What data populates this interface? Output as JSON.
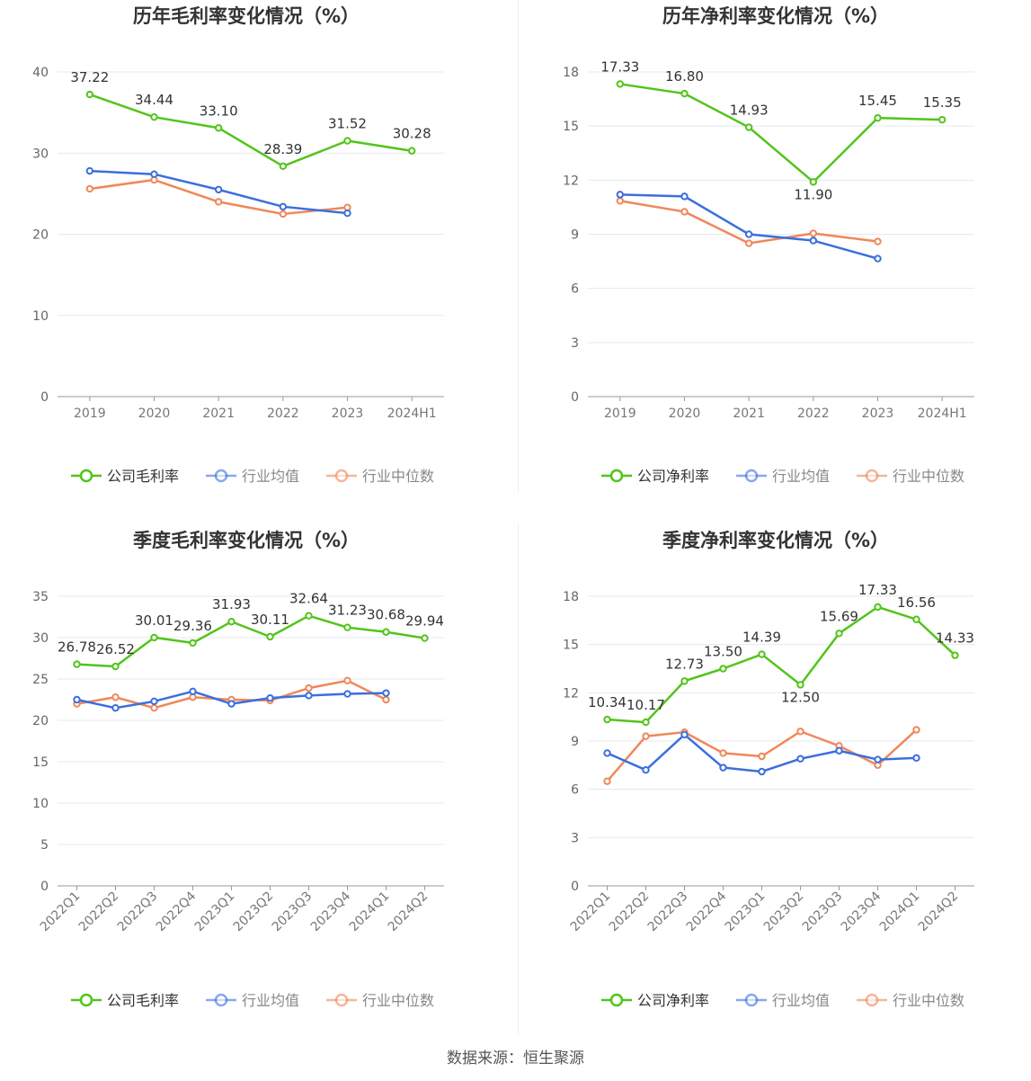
{
  "source": "数据来源：恒生聚源",
  "colors": {
    "company": "#52c41a",
    "avg": "#3b6fde",
    "median": "#f0875a"
  },
  "chart_data": [
    {
      "type": "line",
      "title": "历年毛利率变化情况（%）",
      "categories": [
        "2019",
        "2020",
        "2021",
        "2022",
        "2023",
        "2024H1"
      ],
      "ylim": [
        0,
        40
      ],
      "yticks": [
        0,
        10,
        20,
        30,
        40
      ],
      "grid": true,
      "legend_position": "bottom",
      "series": [
        {
          "name": "公司毛利率",
          "role": "company",
          "values": [
            37.22,
            34.44,
            33.1,
            28.39,
            31.52,
            30.28
          ],
          "labels": [
            "37.22",
            "34.44",
            "33.10",
            "28.39",
            "31.52",
            "30.28"
          ]
        },
        {
          "name": "行业均值",
          "role": "avg",
          "values": [
            27.8,
            27.4,
            25.5,
            23.4,
            22.6,
            null
          ]
        },
        {
          "name": "行业中位数",
          "role": "median",
          "values": [
            25.6,
            26.7,
            24.0,
            22.5,
            23.3,
            null
          ]
        }
      ]
    },
    {
      "type": "line",
      "title": "历年净利率变化情况（%）",
      "categories": [
        "2019",
        "2020",
        "2021",
        "2022",
        "2023",
        "2024H1"
      ],
      "ylim": [
        0,
        18
      ],
      "yticks": [
        0,
        3,
        6,
        9,
        12,
        15,
        18
      ],
      "grid": true,
      "legend_position": "bottom",
      "series": [
        {
          "name": "公司净利率",
          "role": "company",
          "values": [
            17.33,
            16.8,
            14.93,
            11.9,
            15.45,
            15.35
          ],
          "labels": [
            "17.33",
            "16.80",
            "14.93",
            "11.90",
            "15.45",
            "15.35"
          ]
        },
        {
          "name": "行业均值",
          "role": "avg",
          "values": [
            11.2,
            11.1,
            9.0,
            8.65,
            7.65,
            null
          ]
        },
        {
          "name": "行业中位数",
          "role": "median",
          "values": [
            10.85,
            10.25,
            8.5,
            9.05,
            8.6,
            null
          ]
        }
      ]
    },
    {
      "type": "line",
      "title": "季度毛利率变化情况（%）",
      "categories": [
        "2022Q1",
        "2022Q2",
        "2022Q3",
        "2022Q4",
        "2023Q1",
        "2023Q2",
        "2023Q3",
        "2023Q4",
        "2024Q1",
        "2024Q2"
      ],
      "ylim": [
        0,
        35
      ],
      "yticks": [
        0,
        5,
        10,
        15,
        20,
        25,
        30,
        35
      ],
      "grid": true,
      "legend_position": "bottom",
      "series": [
        {
          "name": "公司毛利率",
          "role": "company",
          "values": [
            26.78,
            26.52,
            30.01,
            29.36,
            31.93,
            30.11,
            32.64,
            31.23,
            30.68,
            29.94
          ],
          "labels": [
            "26.78",
            "26.52",
            "30.01",
            "29.36",
            "31.93",
            "30.11",
            "32.64",
            "31.23",
            "30.68",
            "29.94"
          ]
        },
        {
          "name": "行业均值",
          "role": "avg",
          "values": [
            22.5,
            21.5,
            22.3,
            23.5,
            22.0,
            22.7,
            23.0,
            23.2,
            23.3,
            null
          ]
        },
        {
          "name": "行业中位数",
          "role": "median",
          "values": [
            22.0,
            22.8,
            21.5,
            22.8,
            22.5,
            22.4,
            23.9,
            24.8,
            22.5,
            null
          ]
        }
      ]
    },
    {
      "type": "line",
      "title": "季度净利率变化情况（%）",
      "categories": [
        "2022Q1",
        "2022Q2",
        "2022Q3",
        "2022Q4",
        "2023Q1",
        "2023Q2",
        "2023Q3",
        "2023Q4",
        "2024Q1",
        "2024Q2"
      ],
      "ylim": [
        0,
        18
      ],
      "yticks": [
        0,
        3,
        6,
        9,
        12,
        15,
        18
      ],
      "grid": true,
      "legend_position": "bottom",
      "series": [
        {
          "name": "公司净利率",
          "role": "company",
          "values": [
            10.34,
            10.17,
            12.73,
            13.5,
            14.39,
            12.5,
            15.69,
            17.33,
            16.56,
            14.33
          ],
          "labels": [
            "10.34",
            "10.17",
            "12.73",
            "13.50",
            "14.39",
            "12.50",
            "15.69",
            "17.33",
            "16.56",
            "14.33"
          ]
        },
        {
          "name": "行业均值",
          "role": "avg",
          "values": [
            8.25,
            7.2,
            9.4,
            7.35,
            7.1,
            7.9,
            8.4,
            7.85,
            7.95,
            null
          ]
        },
        {
          "name": "行业中位数",
          "role": "median",
          "values": [
            6.5,
            9.3,
            9.55,
            8.25,
            8.05,
            9.6,
            8.7,
            7.5,
            9.7,
            null
          ]
        }
      ]
    }
  ]
}
